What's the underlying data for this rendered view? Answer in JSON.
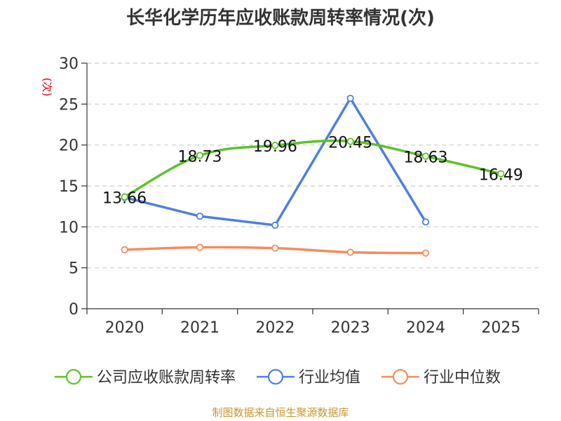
{
  "chart_data": {
    "type": "line",
    "title": "长华化学历年应收账款周转率情况(次)",
    "ylabel": "(次)",
    "xlabel": "",
    "ylim": [
      0,
      30
    ],
    "yticks": [
      0,
      5,
      10,
      15,
      20,
      25,
      30
    ],
    "categories": [
      "2020",
      "2021",
      "2022",
      "2023",
      "2024",
      "2025"
    ],
    "grid": true,
    "legend_position": "bottom",
    "series": [
      {
        "name": "公司应收账款周转率",
        "color": "#5dc227",
        "values": [
          13.66,
          18.73,
          19.96,
          20.45,
          18.63,
          16.49
        ],
        "labels": [
          "13.66",
          "18.73",
          "19.96",
          "20.45",
          "18.63",
          "16.49"
        ],
        "smooth": true
      },
      {
        "name": "行业均值",
        "color": "#4e7fe0",
        "values": [
          13.6,
          11.3,
          10.2,
          25.7,
          10.6,
          null
        ],
        "smooth": false
      },
      {
        "name": "行业中位数",
        "color": "#f58c5a",
        "values": [
          7.2,
          7.5,
          7.4,
          6.9,
          6.8,
          null
        ],
        "smooth": true
      }
    ],
    "source": "制图数据来自恒生聚源数据库"
  }
}
